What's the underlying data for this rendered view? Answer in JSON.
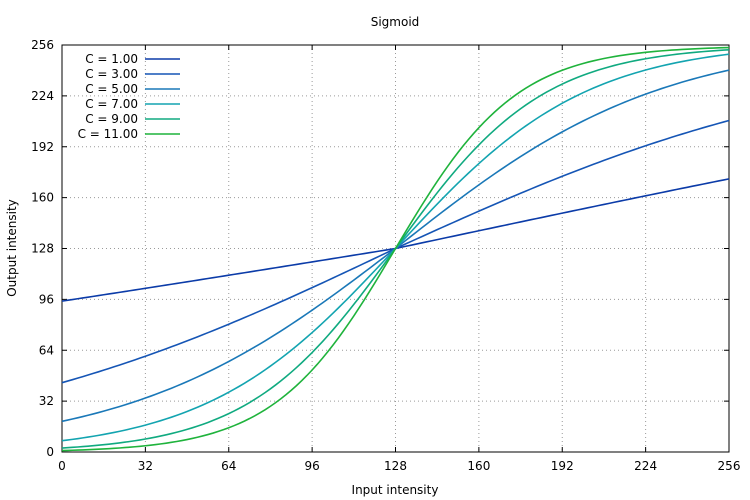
{
  "chart_data": {
    "type": "line",
    "title": "Sigmoid",
    "xlabel": "Input intensity",
    "ylabel": "Output intensity",
    "xlim": [
      0,
      256
    ],
    "ylim": [
      0,
      256
    ],
    "xticks": [
      "0",
      "32",
      "64",
      "96",
      "128",
      "160",
      "192",
      "224",
      "256"
    ],
    "yticks": [
      "0",
      "32",
      "64",
      "96",
      "128",
      "160",
      "192",
      "224",
      "256"
    ],
    "grid": true,
    "legend_position": "top-left",
    "midpoint": 128,
    "x": [
      0,
      16,
      32,
      48,
      64,
      80,
      96,
      112,
      128,
      144,
      160,
      176,
      192,
      208,
      224,
      240,
      256
    ],
    "series": [
      {
        "name": "C = 1.00",
        "color": "#0b3ba8",
        "values": [
          94.9,
          101.8,
          108.9,
          115.8,
          122.7,
          129.6,
          136.4,
          143.1,
          128,
          134.9,
          141.3,
          147.4,
          153.1,
          158.4,
          163.3,
          167.8,
          171.8
        ]
      },
      {
        "name": "C = 3.00",
        "color": "#1555b5",
        "values": [
          43.6,
          52.6,
          62.5,
          73.4,
          85.1,
          97.5,
          110.3,
          123.1,
          128,
          137.9,
          150.2,
          162.0,
          173.1,
          183.3,
          192.6,
          201.0,
          208.5
        ]
      },
      {
        "name": "C = 5.00",
        "color": "#1a78b8",
        "values": [
          19.3,
          25.3,
          33.2,
          43.1,
          55.2,
          69.5,
          85.5,
          102.7,
          128,
          140.9,
          162.0,
          181.4,
          198.6,
          213.1,
          224.7,
          233.6,
          240.2
        ]
      },
      {
        "name": "C = 7.00",
        "color": "#13a4b0",
        "values": [
          7.1,
          10.1,
          14.6,
          21.0,
          30.0,
          42.4,
          58.7,
          79.1,
          128,
          152.8,
          178.8,
          200.4,
          218.3,
          231.1,
          240.5,
          246.5,
          250.2
        ]
      },
      {
        "name": "C = 9.00",
        "color": "#10aa80",
        "values": [
          2.5,
          3.9,
          6.2,
          9.8,
          15.6,
          24.6,
          38.1,
          57.4,
          128,
          163.5,
          193.0,
          216.0,
          232.0,
          242.0,
          248.0,
          251.2,
          253.0
        ]
      },
      {
        "name": "C = 11.00",
        "color": "#1fb33c",
        "values": [
          0.9,
          1.5,
          2.6,
          4.5,
          7.8,
          13.3,
          22.5,
          37.3,
          128,
          172.0,
          205.3,
          227.4,
          240.7,
          247.8,
          251.5,
          253.4,
          254.4
        ]
      }
    ]
  }
}
